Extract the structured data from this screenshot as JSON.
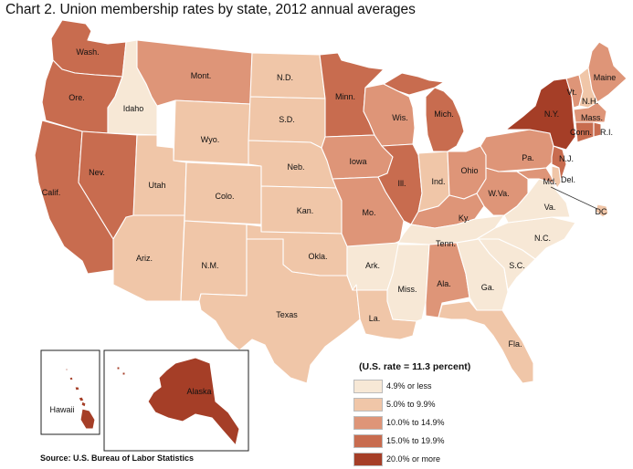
{
  "title": "Chart 2. Union membership rates by state, 2012 annual averages",
  "source": "Source: U.S. Bureau of Labor Statistics",
  "legend": {
    "title": "(U.S. rate = 11.3 percent)",
    "classes": [
      {
        "label": "4.9% or less",
        "color": "#f7e8d6"
      },
      {
        "label": "5.0% to 9.9%",
        "color": "#f0c6a8"
      },
      {
        "label": "10.0% to 14.9%",
        "color": "#de9578"
      },
      {
        "label": "15.0% to 19.9%",
        "color": "#c86c4f"
      },
      {
        "label": "20.0% or more",
        "color": "#a53e27"
      }
    ]
  },
  "states": {
    "wa": {
      "label": "Wash.",
      "class": 3
    },
    "or": {
      "label": "Ore.",
      "class": 3
    },
    "ca": {
      "label": "Calif.",
      "class": 3
    },
    "id": {
      "label": "Idaho",
      "class": 0
    },
    "nv": {
      "label": "Nev.",
      "class": 3
    },
    "mt": {
      "label": "Mont.",
      "class": 2
    },
    "wy": {
      "label": "Wyo.",
      "class": 1
    },
    "ut": {
      "label": "Utah",
      "class": 1
    },
    "az": {
      "label": "Ariz.",
      "class": 1
    },
    "co": {
      "label": "Colo.",
      "class": 1
    },
    "nm": {
      "label": "N.M.",
      "class": 1
    },
    "nd": {
      "label": "N.D.",
      "class": 1
    },
    "sd": {
      "label": "S.D.",
      "class": 1
    },
    "ne": {
      "label": "Neb.",
      "class": 1
    },
    "ks": {
      "label": "Kan.",
      "class": 1
    },
    "ok": {
      "label": "Okla.",
      "class": 1
    },
    "tx": {
      "label": "Texas",
      "class": 1
    },
    "mn": {
      "label": "Minn.",
      "class": 3
    },
    "ia": {
      "label": "Iowa",
      "class": 2
    },
    "mo": {
      "label": "Mo.",
      "class": 2
    },
    "ar": {
      "label": "Ark.",
      "class": 0
    },
    "la": {
      "label": "La.",
      "class": 1
    },
    "wi": {
      "label": "Wis.",
      "class": 2
    },
    "il": {
      "label": "Ill.",
      "class": 3
    },
    "mi": {
      "label": "Mich.",
      "class": 3
    },
    "in": {
      "label": "Ind.",
      "class": 1
    },
    "oh": {
      "label": "Ohio",
      "class": 2
    },
    "ky": {
      "label": "Ky.",
      "class": 2
    },
    "tn": {
      "label": "Tenn.",
      "class": 0
    },
    "ms": {
      "label": "Miss.",
      "class": 0
    },
    "al": {
      "label": "Ala.",
      "class": 2
    },
    "ga": {
      "label": "Ga.",
      "class": 0
    },
    "fl": {
      "label": "Fla.",
      "class": 1
    },
    "sc": {
      "label": "S.C.",
      "class": 0
    },
    "nc": {
      "label": "N.C.",
      "class": 0
    },
    "va": {
      "label": "Va.",
      "class": 0
    },
    "wv": {
      "label": "W.Va.",
      "class": 2
    },
    "pa": {
      "label": "Pa.",
      "class": 2
    },
    "ny": {
      "label": "N.Y.",
      "class": 4
    },
    "vt": {
      "label": "Vt.",
      "class": 2
    },
    "nh": {
      "label": "N.H.",
      "class": 1
    },
    "me": {
      "label": "Maine",
      "class": 2
    },
    "ma": {
      "label": "Mass.",
      "class": 2
    },
    "ri": {
      "label": "R.I.",
      "class": 3
    },
    "ct": {
      "label": "Conn.",
      "class": 3
    },
    "nj": {
      "label": "N.J.",
      "class": 3
    },
    "de": {
      "label": "Del.",
      "class": 1
    },
    "md": {
      "label": "Md.",
      "class": 2
    },
    "dc": {
      "label": "DC",
      "class": 1
    },
    "ak": {
      "label": "Alaska",
      "class": 4
    },
    "hi": {
      "label": "Hawaii",
      "class": 4
    }
  }
}
